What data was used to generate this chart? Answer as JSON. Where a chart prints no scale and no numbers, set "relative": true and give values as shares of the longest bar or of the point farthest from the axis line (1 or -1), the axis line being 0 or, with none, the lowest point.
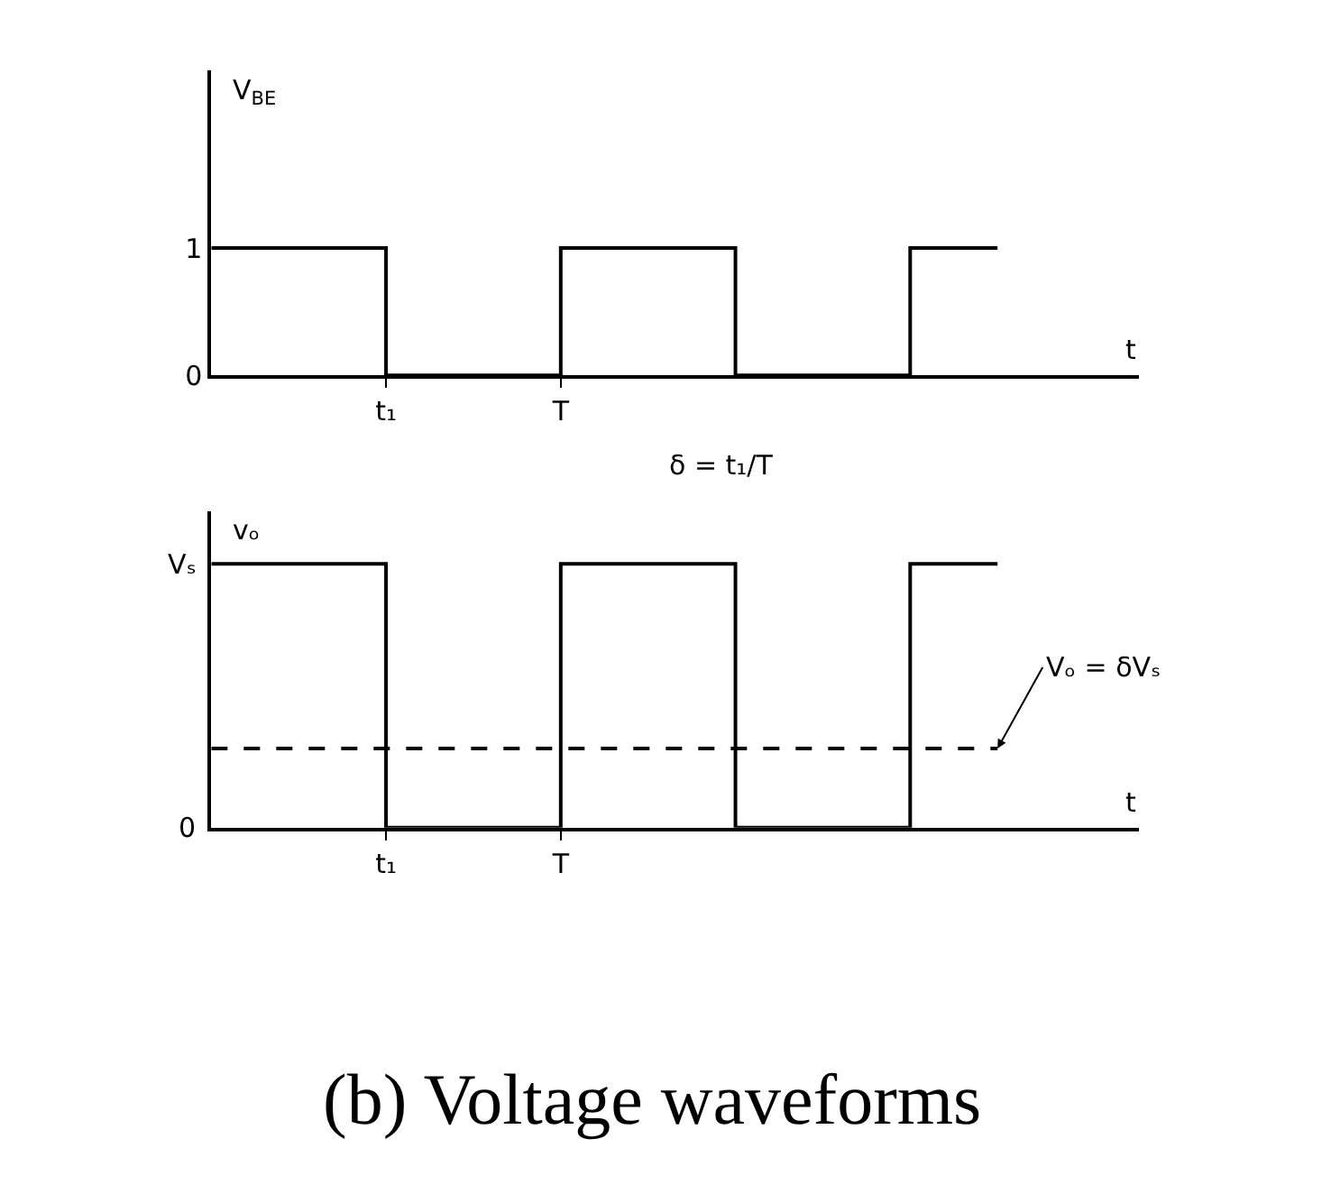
{
  "chart_data": [
    {
      "type": "step",
      "ylabel": "V$_{BE}$",
      "xlabel": "t",
      "categories": [
        null,
        null,
        "t₁",
        null,
        "T",
        null,
        null,
        null,
        null,
        null
      ],
      "values": [
        1,
        1,
        0,
        0,
        1,
        1,
        0,
        0,
        1,
        1
      ],
      "color": "#000000",
      "ylim": [
        0,
        2.4
      ],
      "yticks": [
        0,
        1
      ],
      "line_style": "solid"
    },
    {
      "type": "step",
      "relative": true,
      "ylabel": "vₒ",
      "xlabel": "t",
      "categories": [
        null,
        null,
        "t₁",
        null,
        "T",
        null,
        null,
        null,
        null,
        null
      ],
      "values": [
        1,
        1,
        0,
        0,
        1,
        1,
        0,
        0,
        1,
        1
      ],
      "color": "#000000",
      "line_style": "solid",
      "ref_lines": [
        {
          "axis": "y",
          "value": 0.3,
          "label": "Vₒ = δVₛ",
          "line_style": "dashed",
          "color": "#000000"
        }
      ],
      "annotations": [
        "Vₛ",
        "0",
        "δ = t₁/T",
        "(b) Voltage waveforms"
      ]
    }
  ]
}
